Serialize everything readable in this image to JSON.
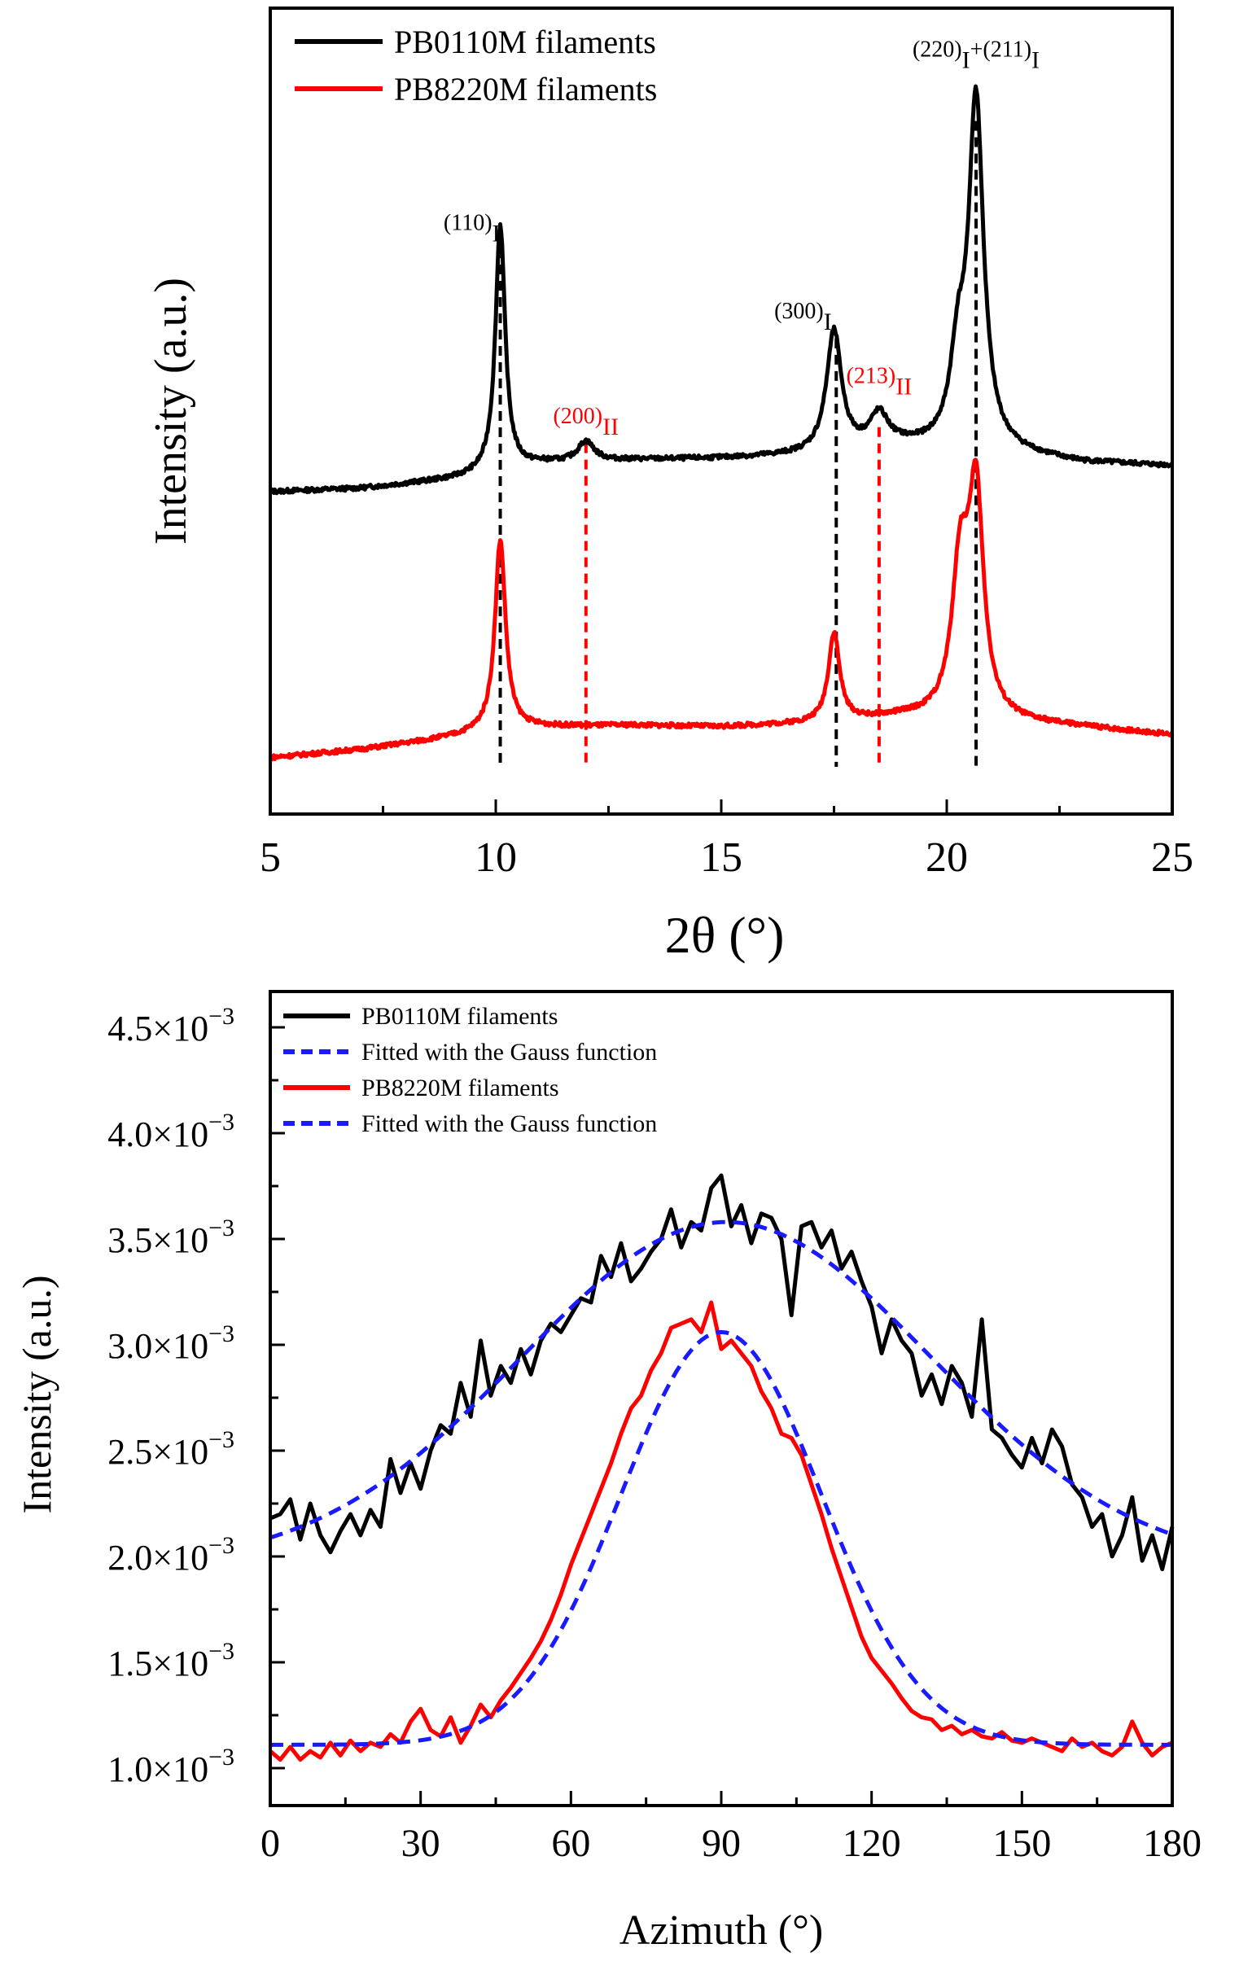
{
  "colors": {
    "black_series": "#000000",
    "red_series": "#ff0000",
    "blue_fit": "#1a1aff",
    "axis": "#000000"
  },
  "chart_data": [
    {
      "type": "line",
      "title": "",
      "xlabel": "2θ (°)",
      "ylabel": "Intensity (a.u.)",
      "xlim": [
        5,
        25
      ],
      "ylim": [
        0,
        100
      ],
      "x_ticks": [
        5,
        10,
        15,
        20,
        25
      ],
      "y_ticks_shown": false,
      "legend": {
        "position": "top-left",
        "entries": [
          {
            "label": "PB0110M filaments",
            "color": "#000000",
            "style": "solid"
          },
          {
            "label": "PB8220M filaments",
            "color": "#ff0000",
            "style": "solid"
          }
        ]
      },
      "series": [
        {
          "name": "PB0110M filaments",
          "color": "#000000",
          "baseline": [
            [
              5,
              40.0
            ],
            [
              7,
              40.4
            ],
            [
              9,
              41.5
            ],
            [
              10,
              42.3
            ],
            [
              11,
              43.4
            ],
            [
              13,
              43.9
            ],
            [
              15,
              44.1
            ],
            [
              17,
              44.5
            ],
            [
              19,
              45.5
            ],
            [
              21,
              45.0
            ],
            [
              23,
              43.6
            ],
            [
              25,
              43.2
            ]
          ],
          "peaks": [
            [
              10.1,
              30.7,
              0.13
            ],
            [
              12.0,
              2.5,
              0.22
            ],
            [
              17.5,
              15.0,
              0.2
            ],
            [
              18.5,
              4.0,
              0.25
            ],
            [
              20.25,
              10.0,
              0.2
            ],
            [
              20.65,
              42.9,
              0.2
            ]
          ]
        },
        {
          "name": "PB8220M filaments",
          "color": "#ff0000",
          "baseline": [
            [
              5,
              7.0
            ],
            [
              7,
              8.0
            ],
            [
              9,
              9.5
            ],
            [
              10,
              10.5
            ],
            [
              11,
              10.8
            ],
            [
              13,
              11.0
            ],
            [
              15,
              10.8
            ],
            [
              17,
              11.2
            ],
            [
              19,
              12.0
            ],
            [
              21,
              11.5
            ],
            [
              23,
              10.8
            ],
            [
              25,
              9.8
            ]
          ],
          "peaks": [
            [
              10.1,
              23.5,
              0.14
            ],
            [
              17.5,
              11.0,
              0.15
            ],
            [
              20.3,
              18.0,
              0.22
            ],
            [
              20.65,
              27.0,
              0.2
            ]
          ]
        }
      ],
      "reference_lines": [
        {
          "x": 10.1,
          "color": "#000000",
          "top": 70.2
        },
        {
          "x": 12.0,
          "color": "#ff0000",
          "top": 46.0
        },
        {
          "x": 17.55,
          "color": "#000000",
          "top": 59.0
        },
        {
          "x": 18.5,
          "color": "#ff0000",
          "top": 48.0
        },
        {
          "x": 20.65,
          "color": "#000000",
          "top": 86.0
        }
      ],
      "annotations": [
        {
          "text": "(110)",
          "sub": "I",
          "color": "#000000",
          "x": 10.1,
          "y": 72.5,
          "anchor": "end"
        },
        {
          "text": "(200)",
          "sub": "II",
          "color": "#ff0000",
          "x": 12.0,
          "y": 48.5,
          "anchor": "middle"
        },
        {
          "text": "(300)",
          "sub": "I",
          "color": "#000000",
          "x": 17.45,
          "y": 61.5,
          "anchor": "end"
        },
        {
          "text": "(213)",
          "sub": "II",
          "color": "#ff0000",
          "x": 18.5,
          "y": 53.5,
          "anchor": "middle"
        },
        {
          "text": "(220)",
          "sub": "I",
          "text2": "+(211)",
          "sub2": "I",
          "color": "#000000",
          "x": 20.65,
          "y": 94.0,
          "anchor": "middle"
        }
      ]
    },
    {
      "type": "line",
      "title": "",
      "xlabel": "Azimuth (°)",
      "ylabel": "Intensity (a.u.)",
      "xlim": [
        0,
        180
      ],
      "ylim": [
        0.9,
        4.5
      ],
      "y_unit": "×10⁻³",
      "x_ticks": [
        0,
        30,
        60,
        90,
        120,
        150,
        180
      ],
      "y_ticks": [
        1.0,
        1.5,
        2.0,
        2.5,
        3.0,
        3.5,
        4.0,
        4.5
      ],
      "y_tick_labels": [
        "1.0×10",
        "1.5×10",
        "2.0×10",
        "2.5×10",
        "3.0×10",
        "3.5×10",
        "4.0×10",
        "4.5×10"
      ],
      "y_tick_exponent": "−3",
      "legend": {
        "position": "top-left",
        "entries": [
          {
            "label": "PB0110M filaments",
            "color": "#000000",
            "style": "solid"
          },
          {
            "label": "Fitted with the Gauss function",
            "color": "#1a1aff",
            "style": "dashed"
          },
          {
            "label": "PB8220M filaments",
            "color": "#ff0000",
            "style": "solid"
          },
          {
            "label": "Fitted with the Gauss function",
            "color": "#1a1aff",
            "style": "dashed"
          }
        ]
      },
      "series": [
        {
          "name": "PB0110M filaments",
          "color": "#000000",
          "x": [
            0,
            2,
            4,
            6,
            8,
            10,
            12,
            14,
            16,
            18,
            20,
            22,
            24,
            26,
            28,
            30,
            32,
            34,
            36,
            38,
            40,
            42,
            44,
            46,
            48,
            50,
            52,
            54,
            56,
            58,
            60,
            62,
            64,
            66,
            68,
            70,
            72,
            74,
            76,
            78,
            80,
            82,
            84,
            86,
            88,
            90,
            92,
            94,
            96,
            98,
            100,
            102,
            104,
            106,
            108,
            110,
            112,
            114,
            116,
            118,
            120,
            122,
            124,
            126,
            128,
            130,
            132,
            134,
            136,
            138,
            140,
            142,
            144,
            146,
            148,
            150,
            152,
            154,
            156,
            158,
            160,
            162,
            164,
            166,
            168,
            170,
            172,
            174,
            176,
            178,
            180
          ],
          "values": [
            2.18,
            2.2,
            2.27,
            2.08,
            2.25,
            2.1,
            2.02,
            2.12,
            2.2,
            2.1,
            2.22,
            2.14,
            2.46,
            2.3,
            2.44,
            2.32,
            2.5,
            2.62,
            2.58,
            2.82,
            2.66,
            3.02,
            2.76,
            2.9,
            2.82,
            2.98,
            2.86,
            3.02,
            3.1,
            3.06,
            3.14,
            3.22,
            3.2,
            3.42,
            3.32,
            3.48,
            3.3,
            3.36,
            3.44,
            3.5,
            3.64,
            3.46,
            3.58,
            3.54,
            3.74,
            3.8,
            3.56,
            3.66,
            3.48,
            3.62,
            3.6,
            3.5,
            3.14,
            3.56,
            3.58,
            3.46,
            3.54,
            3.36,
            3.44,
            3.3,
            3.18,
            2.96,
            3.12,
            3.02,
            2.96,
            2.76,
            2.86,
            2.72,
            2.9,
            2.82,
            2.66,
            3.12,
            2.6,
            2.56,
            2.48,
            2.42,
            2.56,
            2.44,
            2.6,
            2.52,
            2.34,
            2.28,
            2.14,
            2.2,
            2.0,
            2.1,
            2.28,
            1.98,
            2.1,
            1.94,
            2.14
          ]
        },
        {
          "name": "Fitted with the Gauss function",
          "color": "#1a1aff",
          "style": "dashed",
          "fit": {
            "y0": 1.95,
            "amplitude": 1.63,
            "center": 91,
            "sigma": 41
          }
        },
        {
          "name": "PB8220M filaments",
          "color": "#ff0000",
          "x": [
            0,
            2,
            4,
            6,
            8,
            10,
            12,
            14,
            16,
            18,
            20,
            22,
            24,
            26,
            28,
            30,
            32,
            34,
            36,
            38,
            40,
            42,
            44,
            46,
            48,
            50,
            52,
            54,
            56,
            58,
            60,
            62,
            64,
            66,
            68,
            70,
            72,
            74,
            76,
            78,
            80,
            82,
            84,
            86,
            88,
            90,
            92,
            94,
            96,
            98,
            100,
            102,
            104,
            106,
            108,
            110,
            112,
            114,
            116,
            118,
            120,
            122,
            124,
            126,
            128,
            130,
            132,
            134,
            136,
            138,
            140,
            142,
            144,
            146,
            148,
            150,
            152,
            154,
            156,
            158,
            160,
            162,
            164,
            166,
            168,
            170,
            172,
            174,
            176,
            178,
            180
          ],
          "values": [
            1.08,
            1.04,
            1.1,
            1.04,
            1.08,
            1.05,
            1.12,
            1.06,
            1.13,
            1.08,
            1.12,
            1.1,
            1.16,
            1.12,
            1.22,
            1.28,
            1.18,
            1.15,
            1.24,
            1.12,
            1.2,
            1.3,
            1.24,
            1.32,
            1.38,
            1.45,
            1.52,
            1.6,
            1.7,
            1.82,
            1.96,
            2.08,
            2.2,
            2.32,
            2.44,
            2.58,
            2.7,
            2.76,
            2.88,
            2.96,
            3.08,
            3.1,
            3.12,
            3.06,
            3.2,
            2.98,
            3.02,
            2.96,
            2.9,
            2.78,
            2.7,
            2.58,
            2.56,
            2.48,
            2.34,
            2.2,
            2.04,
            1.9,
            1.76,
            1.62,
            1.52,
            1.46,
            1.4,
            1.33,
            1.27,
            1.24,
            1.23,
            1.18,
            1.2,
            1.16,
            1.18,
            1.15,
            1.14,
            1.17,
            1.13,
            1.12,
            1.14,
            1.12,
            1.1,
            1.08,
            1.14,
            1.1,
            1.12,
            1.08,
            1.06,
            1.1,
            1.22,
            1.12,
            1.06,
            1.1,
            1.12
          ]
        },
        {
          "name": "Fitted with the Gauss function",
          "color": "#1a1aff",
          "style": "dashed",
          "fit": {
            "y0": 1.11,
            "amplitude": 1.95,
            "center": 90,
            "sigma": 20
          }
        }
      ]
    }
  ]
}
